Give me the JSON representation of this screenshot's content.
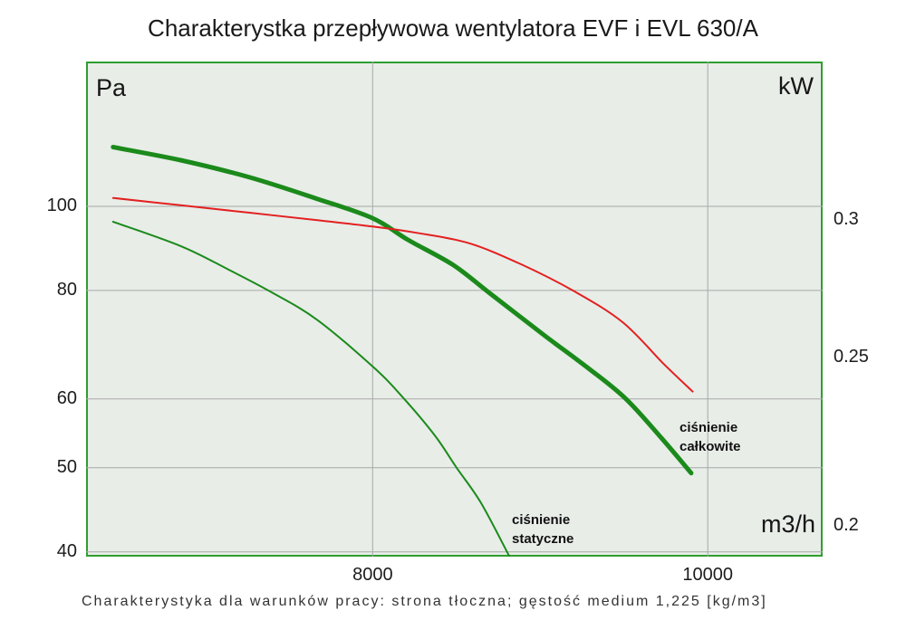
{
  "chart_data": {
    "type": "line",
    "title": "Charakterystka przepływowa wentylatora EVF i EVL 630/A",
    "caption": "Charakterystyka dla warunków pracy: strona tłoczna; gęstość medium 1,225 [kg/m3]",
    "x_axis": {
      "label": "m3/h",
      "scale": "log",
      "range": [
        6610,
        10795
      ],
      "grid": true,
      "ticks": [
        {
          "v": 8000,
          "label": "8000"
        },
        {
          "v": 10000,
          "label": "10000"
        }
      ]
    },
    "y_axis_left": {
      "label": "Pa",
      "scale": "log",
      "range": [
        39.5,
        146.8
      ],
      "grid": true,
      "ticks": [
        {
          "v": 100,
          "label": "100"
        },
        {
          "v": 80,
          "label": "80"
        },
        {
          "v": 60,
          "label": "60"
        },
        {
          "v": 50,
          "label": "50"
        },
        {
          "v": 40,
          "label": "40"
        }
      ]
    },
    "y_axis_right": {
      "label": "kW",
      "scale": "log",
      "range": [
        0.192,
        0.3703
      ],
      "grid": false,
      "ticks": [
        {
          "v": 0.3,
          "label": "0.3"
        },
        {
          "v": 0.25,
          "label": "0.25"
        },
        {
          "v": 0.2,
          "label": "0.2"
        }
      ]
    },
    "series": [
      {
        "name": "ciśnienie całkowite",
        "axis": "left",
        "color": "#1b8a1b",
        "stroke_width": 5,
        "points": [
          [
            6730,
            117
          ],
          [
            7040,
            113
          ],
          [
            7370,
            108
          ],
          [
            7710,
            102
          ],
          [
            8000,
            96.9
          ],
          [
            8190,
            91.5
          ],
          [
            8440,
            85.6
          ],
          [
            8650,
            79.4
          ],
          [
            8970,
            71
          ],
          [
            9240,
            65
          ],
          [
            9470,
            60
          ],
          [
            9700,
            54
          ],
          [
            9890,
            49.3
          ]
        ]
      },
      {
        "name": "ciśnienie statyczne",
        "axis": "left",
        "color": "#1b8a1b",
        "stroke_width": 2,
        "points": [
          [
            6730,
            96
          ],
          [
            7040,
            90
          ],
          [
            7270,
            84.5
          ],
          [
            7480,
            79.6
          ],
          [
            7710,
            74
          ],
          [
            8010,
            65.1
          ],
          [
            8170,
            60
          ],
          [
            8340,
            54.4
          ],
          [
            8460,
            50
          ],
          [
            8600,
            45.5
          ],
          [
            8760,
            39.6
          ]
        ]
      },
      {
        "name": "",
        "axis": "right",
        "color": "#e32020",
        "stroke_width": 2,
        "points": [
          [
            6730,
            0.309
          ],
          [
            7040,
            0.306
          ],
          [
            7370,
            0.303
          ],
          [
            7710,
            0.3
          ],
          [
            8000,
            0.2975
          ],
          [
            8240,
            0.295
          ],
          [
            8530,
            0.291
          ],
          [
            8830,
            0.283
          ],
          [
            9150,
            0.273
          ],
          [
            9450,
            0.262
          ],
          [
            9710,
            0.248
          ],
          [
            9900,
            0.239
          ]
        ]
      }
    ],
    "annotations": [
      {
        "text": "ciśnienie\ncałkowite",
        "series": "ciśnienie całkowite"
      },
      {
        "text": "ciśnienie\nstatyczne",
        "series": "ciśnienie statyczne"
      }
    ],
    "grid_color": "#a8a8a8",
    "plot_bg": "#e8ede8",
    "frame_color": "#2f9e2f"
  }
}
